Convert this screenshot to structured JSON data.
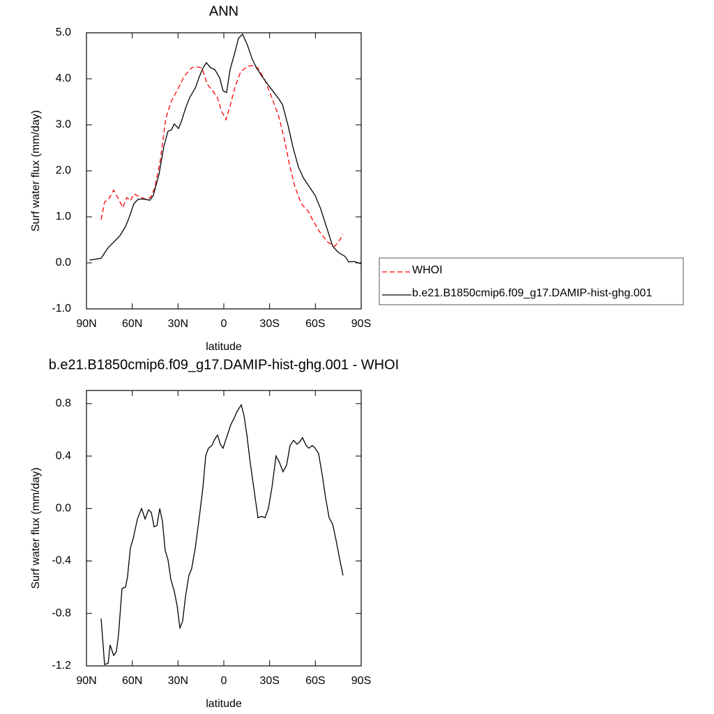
{
  "chart_data": [
    {
      "type": "line",
      "title": "ANN",
      "xlabel": "latitude",
      "ylabel": "Surf water flux (mm/day)",
      "xlim": [
        90,
        -90
      ],
      "ylim": [
        -1,
        5
      ],
      "xticks": [
        {
          "value": 90,
          "label": "90N"
        },
        {
          "value": 60,
          "label": "60N"
        },
        {
          "value": 30,
          "label": "30N"
        },
        0,
        {
          "value": -30,
          "label": "30S"
        },
        {
          "value": -60,
          "label": "60S"
        },
        {
          "value": -90,
          "label": "90S"
        }
      ],
      "yticks": [
        {
          "value": 5,
          "label": "5.0"
        },
        {
          "value": 4,
          "label": "4.0"
        },
        {
          "value": 3,
          "label": "3.0"
        },
        {
          "value": 2,
          "label": "2.0"
        },
        {
          "value": 1,
          "label": "1.0"
        },
        {
          "value": 0,
          "label": "0.0"
        },
        {
          "value": -1,
          "label": "-1.0"
        }
      ],
      "legend": "right",
      "series": [
        {
          "name": "WHOI",
          "color": "#ff0000",
          "dash": true,
          "x": [
            80.4,
            78.1,
            75.4,
            72.2,
            69,
            66.2,
            63.5,
            61.2,
            58.9,
            55.3,
            51.6,
            48,
            45.3,
            41.6,
            38,
            34.3,
            30.2,
            26.1,
            21.1,
            17.4,
            14.2,
            11,
            7.3,
            4.2,
            1.4,
            -1.4,
            -4.1,
            -7.3,
            -11,
            -15.5,
            -18.7,
            -22.4,
            -26.9,
            -31.5,
            -36.1,
            -39.7,
            -42.9,
            -46.6,
            -50.7,
            -55.3,
            -58.9,
            -63.5,
            -68.1,
            -72.6,
            -74.9,
            -78.1
          ],
          "values": [
            0.94,
            1.32,
            1.39,
            1.58,
            1.39,
            1.2,
            1.42,
            1.35,
            1.5,
            1.44,
            1.39,
            1.42,
            1.62,
            2.23,
            3.14,
            3.52,
            3.77,
            4.05,
            4.24,
            4.26,
            4.23,
            3.89,
            3.74,
            3.59,
            3.29,
            3.11,
            3.41,
            3.82,
            4.15,
            4.27,
            4.29,
            4.23,
            3.97,
            3.59,
            3.17,
            2.68,
            2.15,
            1.65,
            1.29,
            1.12,
            0.89,
            0.64,
            0.45,
            0.36,
            0.44,
            0.62
          ]
        },
        {
          "name": "b.e21.B1850cmip6.f09_g17.DAMIP-hist-ghg.001",
          "color": "#000000",
          "dash": false,
          "x": [
            88,
            80.4,
            75.8,
            71.3,
            68.1,
            64.4,
            62.1,
            58.9,
            56.2,
            53,
            48.4,
            46.2,
            42.5,
            39.3,
            36.6,
            34.3,
            32.5,
            29.7,
            27.9,
            25.1,
            22.4,
            18.7,
            16,
            13.7,
            11.4,
            8.7,
            5.9,
            2.7,
            0.5,
            -1.8,
            -4.1,
            -7.3,
            -9.6,
            -12.3,
            -15.5,
            -18.7,
            -21.5,
            -25.1,
            -29.2,
            -32.9,
            -36.1,
            -38.4,
            -42.1,
            -45.2,
            -48.9,
            -52.1,
            -56.7,
            -59.8,
            -63.5,
            -67.2,
            -71.3,
            -74.9,
            -79.5,
            -81.8,
            -85.4,
            -90
          ],
          "values": [
            0.06,
            0.1,
            0.33,
            0.48,
            0.59,
            0.79,
            0.98,
            1.29,
            1.38,
            1.39,
            1.36,
            1.47,
            1.92,
            2.53,
            2.86,
            2.89,
            3.02,
            2.92,
            3.06,
            3.36,
            3.59,
            3.8,
            4.05,
            4.23,
            4.35,
            4.24,
            4.2,
            4.02,
            3.74,
            3.7,
            4.2,
            4.58,
            4.88,
            4.97,
            4.73,
            4.42,
            4.23,
            4.05,
            3.86,
            3.7,
            3.56,
            3.44,
            2.98,
            2.53,
            2.08,
            1.85,
            1.62,
            1.47,
            1.17,
            0.79,
            0.36,
            0.23,
            0.14,
            0.02,
            0.03,
            -0.02
          ]
        }
      ]
    },
    {
      "type": "line",
      "title": "b.e21.B1850cmip6.f09_g17.DAMIP-hist-ghg.001 - WHOI",
      "xlabel": "latitude",
      "ylabel": "Surf water flux (mm/day)",
      "xlim": [
        90,
        -90
      ],
      "ylim": [
        -1.2,
        0.9
      ],
      "xticks": [
        {
          "value": 90,
          "label": "90N"
        },
        {
          "value": 60,
          "label": "60N"
        },
        {
          "value": 30,
          "label": "30N"
        },
        0,
        {
          "value": -30,
          "label": "30S"
        },
        {
          "value": -60,
          "label": "60S"
        },
        {
          "value": -90,
          "label": "90S"
        }
      ],
      "yticks": [
        0.8,
        0.4,
        {
          "value": 0,
          "label": "0.0"
        },
        -0.4,
        -0.8,
        -1.2
      ],
      "series": [
        {
          "color": "#000000",
          "dash": false,
          "x": [
            80.4,
            78.1,
            75.8,
            74.5,
            72.2,
            70.4,
            69,
            66.7,
            64.4,
            63.1,
            61.2,
            59.4,
            56.6,
            53.9,
            51.6,
            49.3,
            47.5,
            45.7,
            43.8,
            42,
            40.2,
            38.4,
            36.6,
            34.7,
            32.5,
            30.6,
            28.8,
            27,
            25.1,
            22.9,
            21.1,
            18.7,
            16,
            13.7,
            11.9,
            10.1,
            7.8,
            5.9,
            4.1,
            2.3,
            0.5,
            -1.8,
            -4.6,
            -6.8,
            -8.7,
            -11.4,
            -13.2,
            -15.1,
            -17.4,
            -19.6,
            -22.4,
            -24.7,
            -27,
            -29.2,
            -31.5,
            -34.2,
            -36.5,
            -38.8,
            -41.1,
            -43.4,
            -45.7,
            -48,
            -49.8,
            -51.6,
            -53.9,
            -55.7,
            -58,
            -59.8,
            -62.1,
            -64.4,
            -66.7,
            -69,
            -71.3,
            -73.5,
            -75.8,
            -78.1
          ],
          "values": [
            -0.84,
            -1.19,
            -1.18,
            -1.04,
            -1.12,
            -1.09,
            -0.96,
            -0.61,
            -0.6,
            -0.52,
            -0.3,
            -0.23,
            -0.08,
            0,
            -0.08,
            -0.01,
            -0.03,
            -0.14,
            -0.13,
            0,
            -0.1,
            -0.32,
            -0.39,
            -0.54,
            -0.63,
            -0.74,
            -0.91,
            -0.86,
            -0.67,
            -0.51,
            -0.46,
            -0.3,
            -0.06,
            0.16,
            0.4,
            0.46,
            0.48,
            0.53,
            0.56,
            0.49,
            0.46,
            0.54,
            0.64,
            0.69,
            0.74,
            0.79,
            0.71,
            0.56,
            0.34,
            0.16,
            -0.07,
            -0.06,
            -0.07,
            0,
            0.16,
            0.4,
            0.35,
            0.28,
            0.33,
            0.48,
            0.52,
            0.49,
            0.51,
            0.54,
            0.48,
            0.46,
            0.48,
            0.46,
            0.42,
            0.26,
            0.08,
            -0.07,
            -0.12,
            -0.24,
            -0.38,
            -0.51
          ]
        }
      ]
    }
  ]
}
